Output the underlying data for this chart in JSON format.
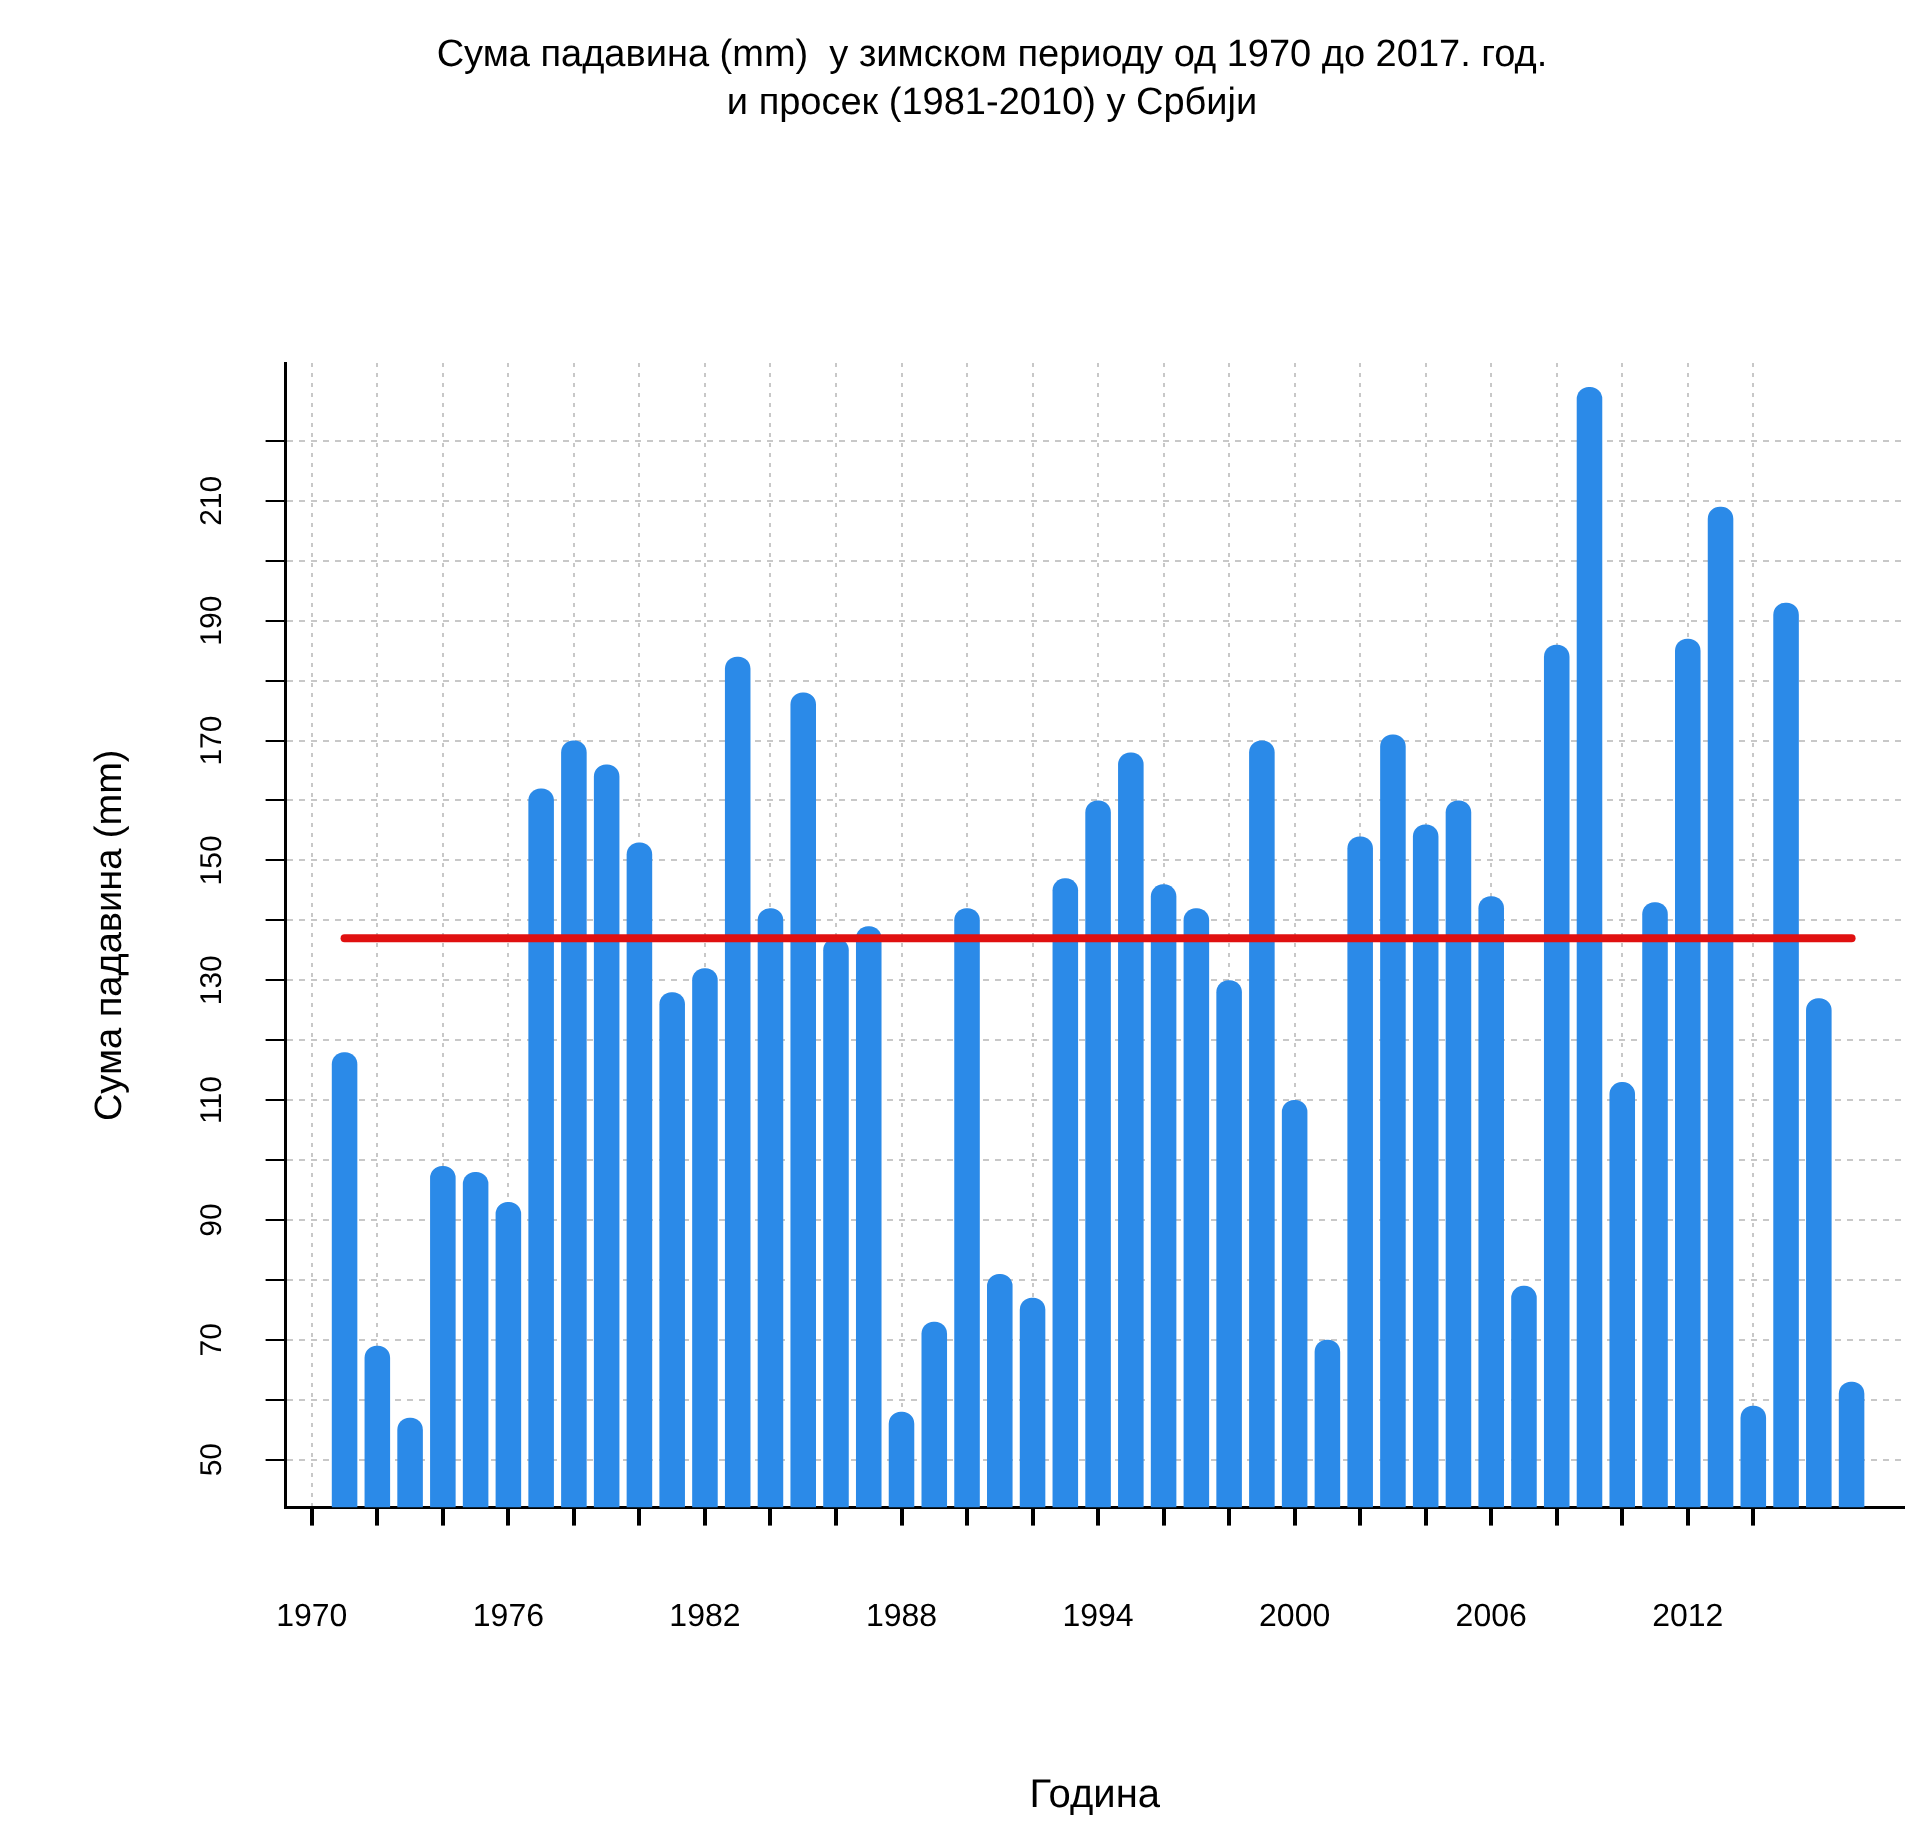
{
  "chart_data": {
    "type": "bar",
    "title": [
      "Сума падавина (mm)  у зимском периоду од 1970 до 2017. год.",
      "и просек (1981-2010) у Србији"
    ],
    "xlabel": "Година",
    "ylabel": "Сума падавина (mm)",
    "x": [
      1971,
      1972,
      1973,
      1974,
      1975,
      1976,
      1977,
      1978,
      1979,
      1980,
      1981,
      1982,
      1983,
      1984,
      1985,
      1986,
      1987,
      1988,
      1989,
      1990,
      1991,
      1992,
      1993,
      1994,
      1995,
      1996,
      1997,
      1998,
      1999,
      2000,
      2001,
      2002,
      2003,
      2004,
      2005,
      2006,
      2007,
      2008,
      2009,
      2010,
      2011,
      2012,
      2013,
      2014,
      2015,
      2016,
      2017
    ],
    "values": [
      118,
      69,
      57,
      99,
      98,
      93,
      162,
      170,
      166,
      153,
      128,
      132,
      184,
      142,
      178,
      137,
      139,
      58,
      73,
      142,
      81,
      77,
      147,
      160,
      168,
      146,
      142,
      130,
      170,
      110,
      70,
      154,
      171,
      156,
      160,
      144,
      79,
      186,
      229,
      113,
      143,
      187,
      209,
      59,
      193,
      127,
      63
    ],
    "color": "#2b8ae8",
    "xlim": [
      1969.2,
      2018.6
    ],
    "xticks": [
      1970,
      {
        "value": 1972,
        "label": null
      },
      {
        "value": 1974,
        "label": null
      },
      1976,
      {
        "value": 1978,
        "label": null
      },
      {
        "value": 1980,
        "label": null
      },
      1982,
      {
        "value": 1984,
        "label": null
      },
      {
        "value": 1986,
        "label": null
      },
      1988,
      {
        "value": 1990,
        "label": null
      },
      {
        "value": 1992,
        "label": null
      },
      1994,
      {
        "value": 1996,
        "label": null
      },
      {
        "value": 1998,
        "label": null
      },
      2000,
      {
        "value": 2002,
        "label": null
      },
      {
        "value": 2004,
        "label": null
      },
      2006,
      {
        "value": 2008,
        "label": null
      },
      {
        "value": 2010,
        "label": null
      },
      2012,
      {
        "value": 2014,
        "label": null
      }
    ],
    "ylim": [
      42,
      233
    ],
    "yticks": [
      50,
      {
        "value": 60,
        "label": null
      },
      70,
      {
        "value": 80,
        "label": null
      },
      90,
      {
        "value": 100,
        "label": null
      },
      110,
      {
        "value": 120,
        "label": null
      },
      130,
      {
        "value": 140,
        "label": null
      },
      150,
      {
        "value": 160,
        "label": null
      },
      170,
      {
        "value": 180,
        "label": null
      },
      190,
      {
        "value": 200,
        "label": null
      },
      210,
      {
        "value": 220,
        "label": null
      }
    ],
    "ref_lines": [
      {
        "axis": "y",
        "value": 137,
        "color": "#e01010"
      }
    ],
    "grid": true
  }
}
